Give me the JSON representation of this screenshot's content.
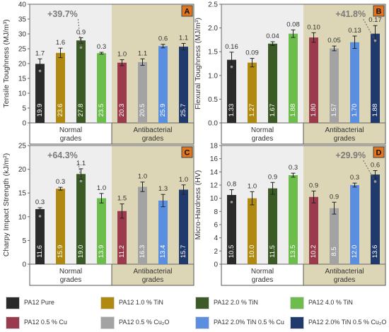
{
  "colors": {
    "normal_bg": "#eeeeee",
    "antibacterial_bg": "#ddd6b6",
    "panel_tag_bg": "#e3751f",
    "improvement_text": "#7a7a7a"
  },
  "panel_groups": {
    "normal": "Normal grades",
    "antibacterial": "Antibacterial grades"
  },
  "legend": [
    {
      "label": "PA12 Pure",
      "color": "#2a2a2a"
    },
    {
      "label": "PA12 1.0 % TiN",
      "color": "#b08a10"
    },
    {
      "label": "PA12 2.0 % TiN",
      "color": "#3b5a25"
    },
    {
      "label": "PA12 4.0 % TiN",
      "color": "#6cbd4b"
    },
    {
      "label": "PA12 0.5 % Cu",
      "color": "#9b3a4c"
    },
    {
      "label": "PA12 0.5 % Cu₂O",
      "color": "#a3a3a3"
    },
    {
      "label": "PA12 2.0% TiN 0.5 % Cu",
      "color": "#5a8ee0"
    },
    {
      "label": "PA12 2.0% TiN 0.5 % Cu₂O",
      "color": "#213a6e"
    }
  ],
  "chart_data": [
    {
      "panel": "A",
      "type": "bar",
      "ylabel": "Tensile Toughness (MJ/m³)",
      "ylim": [
        0,
        40
      ],
      "yticks": [
        "0",
        "5",
        "10",
        "15",
        "20",
        "25",
        "30",
        "35",
        "40"
      ],
      "categories": [
        "PA12 Pure",
        "PA12 1.0 % TiN",
        "PA12 2.0 % TiN",
        "PA12 4.0 % TiN",
        "PA12 0.5 % Cu",
        "PA12 0.5 % Cu₂O",
        "PA12 2.0% TiN 0.5 % Cu",
        "PA12 2.0% TiN 0.5 % Cu₂O"
      ],
      "values": [
        19.9,
        23.6,
        27.8,
        23.5,
        20.3,
        20.5,
        25.9,
        25.7
      ],
      "value_labels": [
        "19.9",
        "23.6",
        "27.8",
        "23.5",
        "20.3",
        "20.5",
        "25.9",
        "25.7"
      ],
      "errors": [
        1.7,
        1.6,
        0.9,
        0.3,
        1.0,
        1.1,
        0.6,
        1.1
      ],
      "error_labels": [
        "1.7",
        "1.6",
        "0.9",
        "0.3",
        "1.0",
        "1.1",
        "0.6",
        "1.1"
      ],
      "improvement": "+39.7%",
      "improvement_from": 0,
      "improvement_to": 2
    },
    {
      "panel": "B",
      "type": "bar",
      "ylabel": "Flexural Toughness (MJ/m³)",
      "ylim": [
        0,
        2.5
      ],
      "yticks": [
        "0.0",
        "0.5",
        "1.0",
        "1.5",
        "2.0",
        "2.5"
      ],
      "categories": [
        "PA12 Pure",
        "PA12 1.0 % TiN",
        "PA12 2.0 % TiN",
        "PA12 4.0 % TiN",
        "PA12 0.5 % Cu",
        "PA12 0.5 % Cu₂O",
        "PA12 2.0% TiN 0.5 % Cu",
        "PA12 2.0% TiN 0.5 % Cu₂O"
      ],
      "values": [
        1.33,
        1.27,
        1.67,
        1.88,
        1.8,
        1.57,
        1.7,
        1.88
      ],
      "value_labels": [
        "1.33",
        "1.27",
        "1.67",
        "1.88",
        "1.80",
        "1.57",
        "1.70",
        "1.88"
      ],
      "errors": [
        0.16,
        0.09,
        0.04,
        0.08,
        0.1,
        0.05,
        0.13,
        0.17
      ],
      "error_labels": [
        "0.16",
        "0.09",
        "0.04",
        "0.08",
        "0.10",
        "0.05",
        "0.13",
        "0.17"
      ],
      "improvement": "+41.8%",
      "improvement_from": 0,
      "improvement_to": 7
    },
    {
      "panel": "C",
      "type": "bar",
      "ylabel": "Charpy Impact Strength (kJ/m²)",
      "ylim": [
        0,
        25
      ],
      "yticks": [
        "0",
        "5",
        "10",
        "15",
        "20",
        "25"
      ],
      "categories": [
        "PA12 Pure",
        "PA12 1.0 % TiN",
        "PA12 2.0 % TiN",
        "PA12 4.0 % TiN",
        "PA12 0.5 % Cu",
        "PA12 0.5 % Cu₂O",
        "PA12 2.0% TiN 0.5 % Cu",
        "PA12 2.0% TiN 0.5 % Cu₂O"
      ],
      "values": [
        11.6,
        15.9,
        19.0,
        13.9,
        11.2,
        16.3,
        13.4,
        15.7
      ],
      "value_labels": [
        "11.6",
        "15.9",
        "19.0",
        "13.9",
        "11.2",
        "16.3",
        "13.4",
        "15.7"
      ],
      "errors": [
        0.3,
        0.3,
        1.1,
        1.0,
        1.5,
        1.0,
        1.3,
        1.0
      ],
      "error_labels": [
        "0.3",
        "0.3",
        "1.1",
        "1.0",
        "1.5",
        "1.0",
        "1.3",
        "1.0"
      ],
      "improvement": "+64.3%",
      "improvement_from": 0,
      "improvement_to": 2
    },
    {
      "panel": "D",
      "type": "bar",
      "ylabel": "Micro-Hardness (HV)",
      "ylim": [
        0,
        18
      ],
      "yticks": [
        "0",
        "2",
        "4",
        "6",
        "8",
        "10",
        "12",
        "14",
        "16",
        "18"
      ],
      "categories": [
        "PA12 Pure",
        "PA12 1.0 % TiN",
        "PA12 2.0 % TiN",
        "PA12 4.0 % TiN",
        "PA12 0.5 % Cu",
        "PA12 0.5 % Cu₂O",
        "PA12 2.0% TiN 0.5 % Cu",
        "PA12 2.0% TiN 0.5 % Cu₂O"
      ],
      "values": [
        10.5,
        10.0,
        11.5,
        13.5,
        10.2,
        8.5,
        12.0,
        13.6
      ],
      "value_labels": [
        "10.5",
        "10.0",
        "11.5",
        "13.5",
        "10.2",
        "8.5",
        "12.0",
        "13.6"
      ],
      "errors": [
        0.8,
        1.0,
        0.9,
        0.3,
        0.9,
        0.9,
        0.3,
        0.6
      ],
      "error_labels": [
        "0.8",
        "1.0",
        "0.9",
        "0.3",
        "0.9",
        "0.9",
        "0.3",
        "0.6"
      ],
      "improvement": "+29.9%",
      "improvement_from": 0,
      "improvement_to": 7
    }
  ]
}
